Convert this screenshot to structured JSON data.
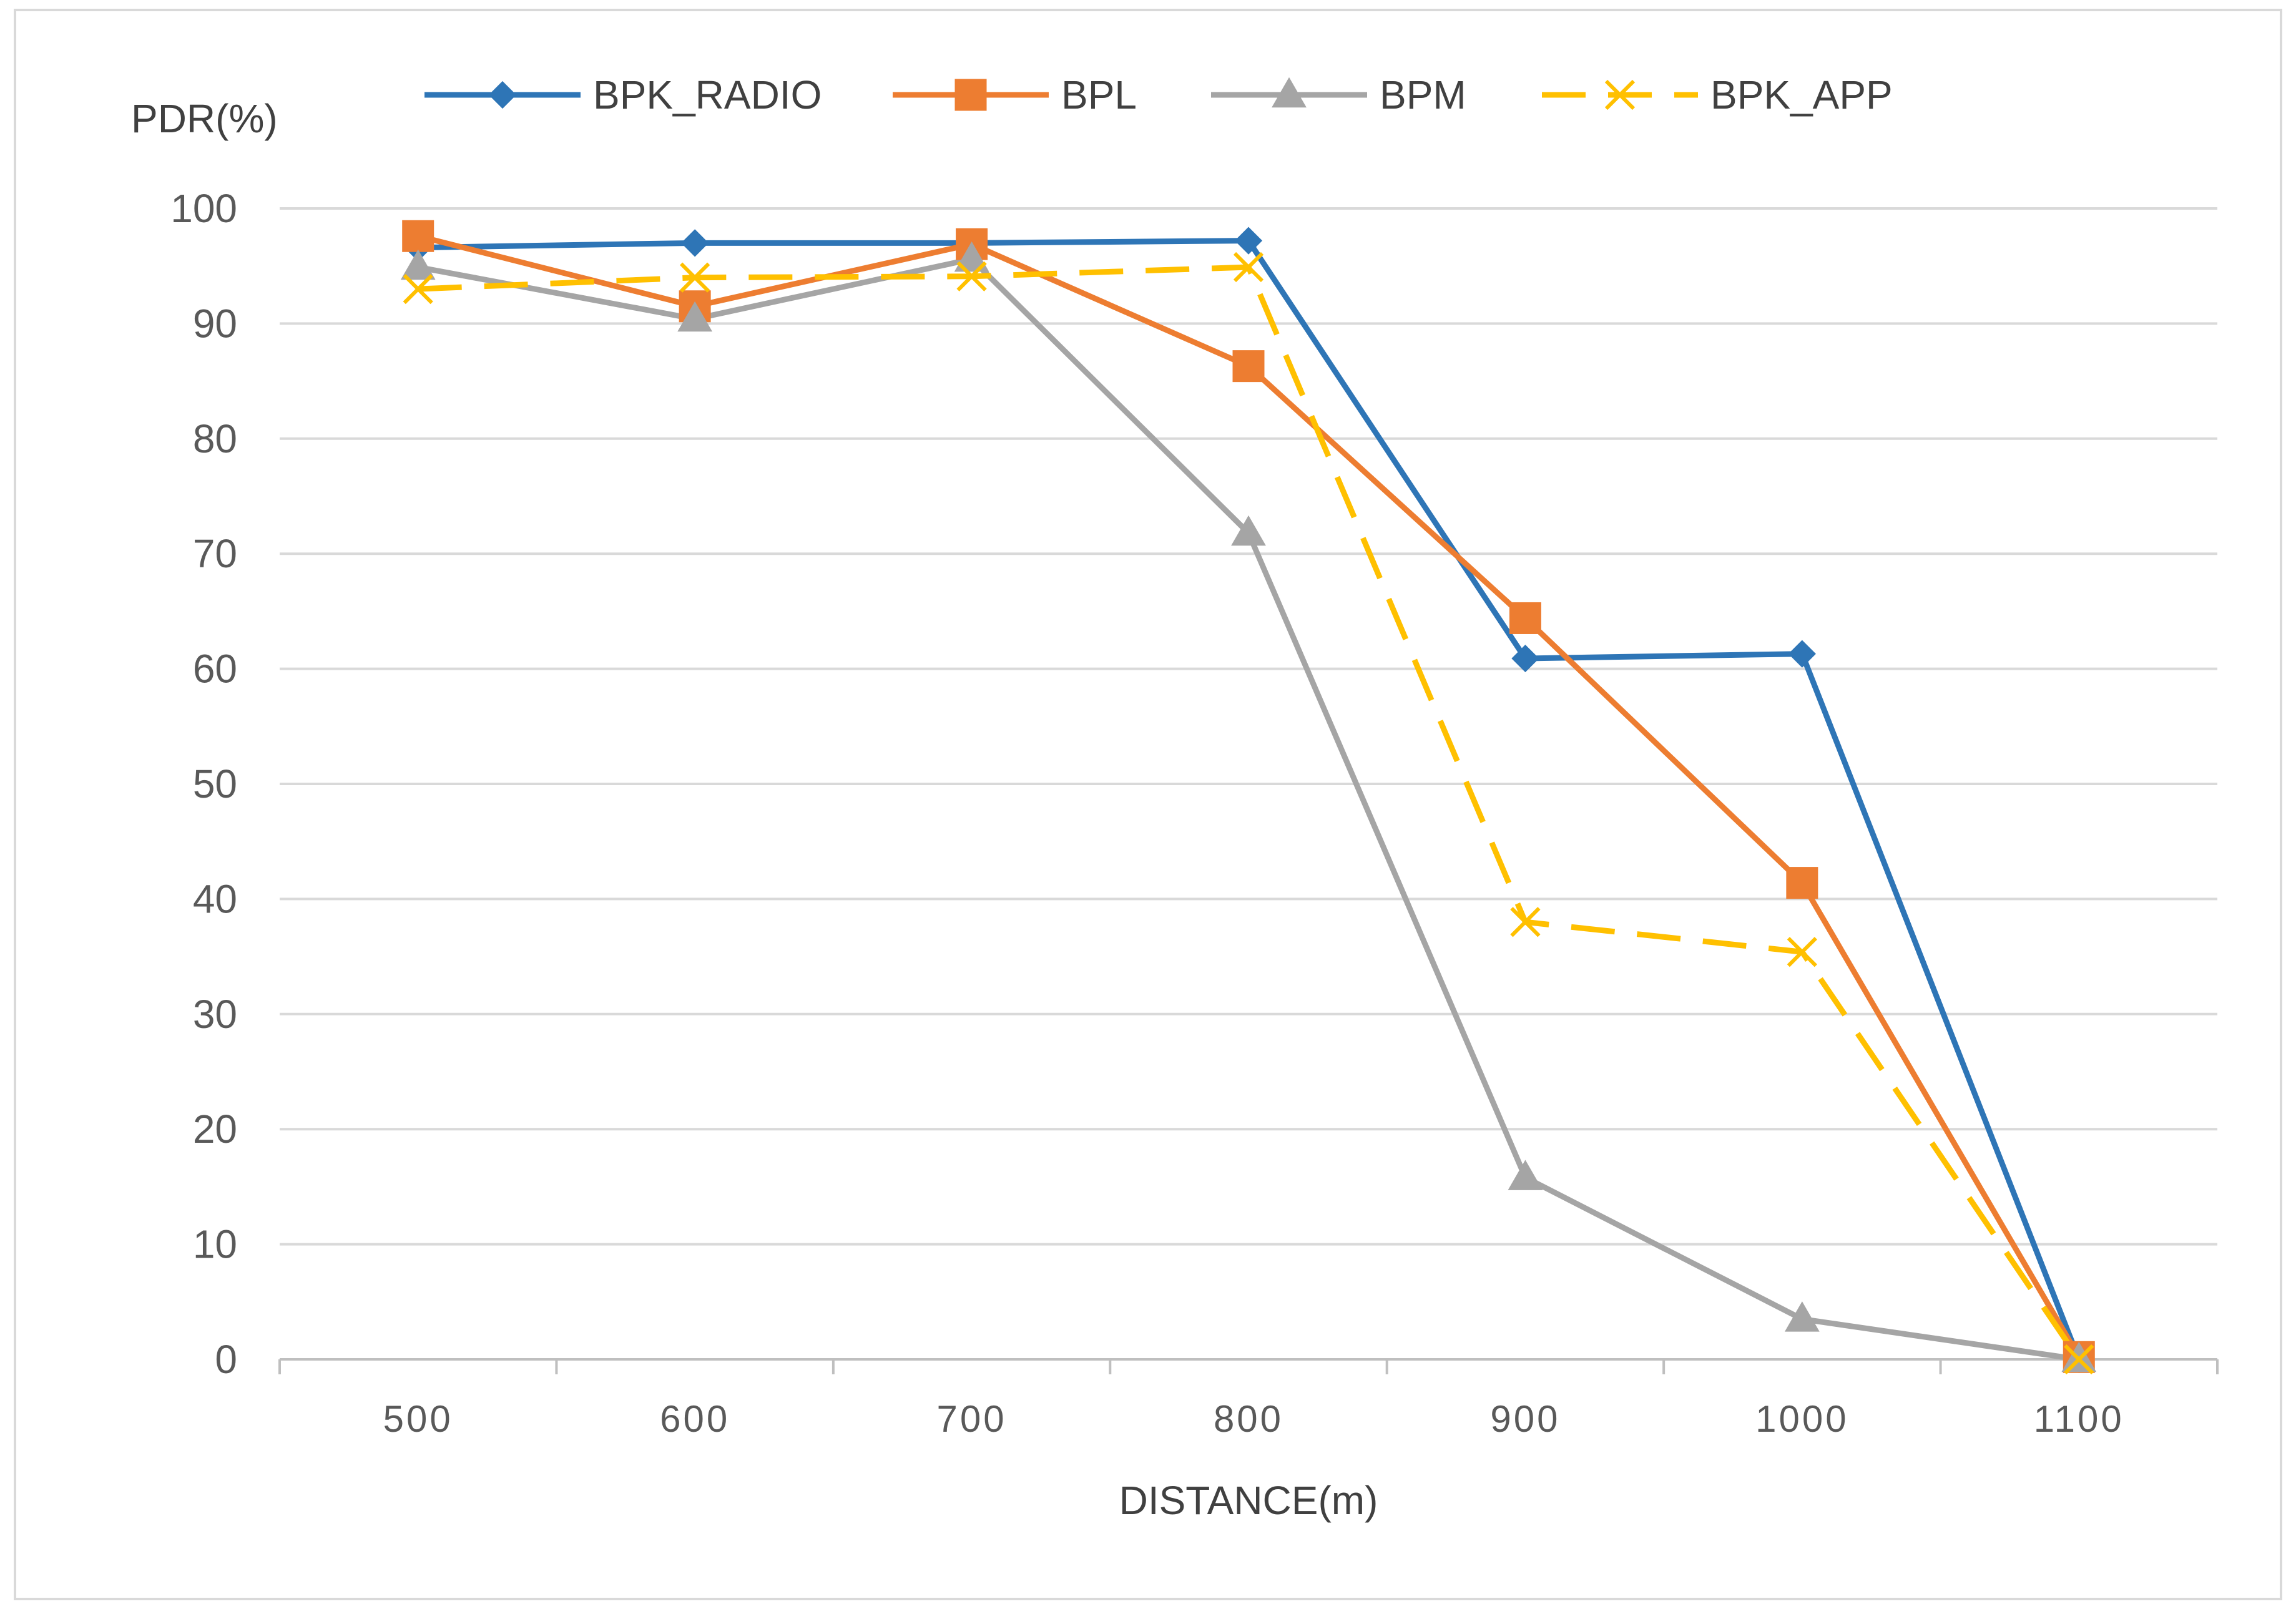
{
  "chart_data": {
    "type": "line",
    "title": "",
    "xlabel": "DISTANCE(m)",
    "ylabel": "PDR(%)",
    "categories": [
      "500",
      "600",
      "700",
      "800",
      "900",
      "1000",
      "1100"
    ],
    "ylim": [
      0,
      100
    ],
    "yticks": [
      0,
      10,
      20,
      30,
      40,
      50,
      60,
      70,
      80,
      90,
      100
    ],
    "grid": true,
    "legend_position": "top",
    "series": [
      {
        "name": "BPK_RADIO",
        "color": "#2E75B6",
        "marker": "diamond",
        "dash": "solid",
        "values": [
          96.6,
          97.0,
          97.0,
          97.2,
          60.9,
          61.3,
          0
        ]
      },
      {
        "name": "BPL",
        "color": "#ED7D31",
        "marker": "square",
        "dash": "solid",
        "values": [
          97.6,
          91.5,
          96.9,
          86.3,
          64.4,
          41.4,
          0.2
        ]
      },
      {
        "name": "BPM",
        "color": "#A5A5A5",
        "marker": "triangle",
        "dash": "solid",
        "values": [
          94.9,
          90.4,
          95.6,
          71.8,
          15.8,
          3.5,
          0
        ]
      },
      {
        "name": "BPK_APP",
        "color": "#FFC000",
        "marker": "x",
        "dash": "dashed",
        "values": [
          93.0,
          94.0,
          94.1,
          94.9,
          38.0,
          35.4,
          0
        ]
      }
    ]
  }
}
